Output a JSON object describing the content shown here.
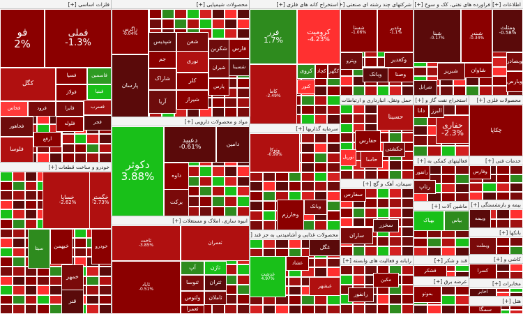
{
  "title": "",
  "colors": {
    "strong_negative": "#8b0000",
    "negative": "#b01010",
    "mild_negative": "#d42020",
    "light_negative": "#ff3030",
    "neutral_dark": "#5a0a0a",
    "positive": "#2e8b1e",
    "strong_positive": "#19c019",
    "light_positive": "#33dd33"
  },
  "chart_data": {
    "type": "treemap",
    "value_label": "daily change %",
    "sectors": [
      {
        "name": "فلزات اساسی [+]",
        "tiles": [
          {
            "name": "فو",
            "pct": "2%",
            "color": "#8b0000"
          },
          {
            "name": "فملی",
            "pct": "-1.3%",
            "color": "#8b0000"
          },
          {
            "name": "فاسمین",
            "pct": "",
            "color": "#2e9b22"
          },
          {
            "name": "فبنیا",
            "pct": "",
            "color": "#19c019"
          },
          {
            "name": "فسپا",
            "pct": "",
            "color": "#8b0000"
          },
          {
            "name": "کگل",
            "pct": "",
            "color": "#b01010"
          },
          {
            "name": "فولاژ",
            "pct": "",
            "color": "#8b0000"
          },
          {
            "name": "فایرا",
            "pct": "",
            "color": "#7a0a0a"
          },
          {
            "name": "فسرب",
            "pct": "",
            "color": "#a01010"
          },
          {
            "name": "فجر",
            "pct": "",
            "color": "#5a0a0a"
          },
          {
            "name": "فلوله",
            "pct": "",
            "color": "#8b0000"
          },
          {
            "name": "فخاس",
            "pct": "",
            "color": "#ff3a3a"
          },
          {
            "name": "فرود",
            "pct": "",
            "color": "#7a0a0a"
          },
          {
            "name": "فخاهور",
            "pct": "",
            "color": "#6e0c0c"
          },
          {
            "name": "ارفع",
            "pct": "",
            "color": "#8b0000"
          },
          {
            "name": "فلوسا",
            "pct": "",
            "color": "#b01010"
          }
        ]
      },
      {
        "name": "محصولات شیمیایی [+]",
        "tiles": [
          {
            "name": "زاگرس",
            "pct": "-0.04%",
            "color": "#8b0000"
          },
          {
            "name": "شپدیس",
            "pct": "",
            "color": "#5a0a0a"
          },
          {
            "name": "شفن",
            "pct": "",
            "color": "#7a0a0a"
          },
          {
            "name": "شکربن",
            "pct": "",
            "color": "#6e0c0c"
          },
          {
            "name": "فارس",
            "pct": "",
            "color": "#8b0000"
          },
          {
            "name": "شسینا",
            "pct": "",
            "color": "#5a0a0a"
          },
          {
            "name": "نوری",
            "pct": "",
            "color": "#b01010"
          },
          {
            "name": "جم",
            "pct": "",
            "color": "#8b0000"
          },
          {
            "name": "شاراک",
            "pct": "",
            "color": "#7a0a0a"
          },
          {
            "name": "کلر",
            "pct": "",
            "color": "#8b0000"
          },
          {
            "name": "آریا",
            "pct": "",
            "color": "#6e0c0c"
          },
          {
            "name": "شیراز",
            "pct": "",
            "color": "#8b0000"
          },
          {
            "name": "پارسان",
            "pct": "",
            "color": "#5a0a0a"
          },
          {
            "name": "شیران",
            "pct": "",
            "color": "#7a0a0a"
          },
          {
            "name": "پارس",
            "pct": "",
            "color": "#8b0000"
          }
        ]
      },
      {
        "name": "استخراج کانه های فلزی [+]",
        "tiles": [
          {
            "name": "فرر",
            "pct": "1.7%",
            "color": "#2e8b1e"
          },
          {
            "name": "کرومیت",
            "pct": "-4.23%",
            "color": "#ff3030"
          },
          {
            "name": "کروی",
            "pct": "",
            "color": "#2e8b1e"
          },
          {
            "name": "کاما",
            "pct": "-2.49%",
            "color": "#b01010"
          },
          {
            "name": "کچاد",
            "pct": "",
            "color": "#8b0000"
          },
          {
            "name": "کگهر",
            "pct": "",
            "color": "#7a0a0a"
          },
          {
            "name": "کنور",
            "pct": "",
            "color": "#ff3030"
          }
        ]
      },
      {
        "name": "خودرو و ساخت قطعات [+]",
        "tiles": [
          {
            "name": "خساپا",
            "pct": "-2.62%",
            "color": "#b01010"
          },
          {
            "name": "خگستر",
            "pct": "-2.73%",
            "color": "#b01010"
          },
          {
            "name": "خودرو",
            "pct": "",
            "color": "#8b0000"
          },
          {
            "name": "خمهر",
            "pct": "",
            "color": "#7a0a0a"
          },
          {
            "name": "خبهمن",
            "pct": "",
            "color": "#8b0000"
          },
          {
            "name": "قنر",
            "pct": "",
            "color": "#5a0a0a"
          },
          {
            "name": "سیتا",
            "pct": "",
            "color": "#2e8b1e"
          }
        ]
      },
      {
        "name": "مواد و محصولات دارویی [+]",
        "tiles": [
          {
            "name": "دکوثر",
            "pct": "3.88%",
            "color": "#19c019"
          },
          {
            "name": "دعبید",
            "pct": "-0.61%",
            "color": "#5a0a0a"
          },
          {
            "name": "دامین",
            "pct": "",
            "color": "#5a0a0a"
          },
          {
            "name": "داوه",
            "pct": "",
            "color": "#8b0000"
          },
          {
            "name": "برکت",
            "pct": "",
            "color": "#7a0a0a"
          }
        ]
      },
      {
        "name": "انبوه سازی، املاک و مستغلات [+]",
        "tiles": [
          {
            "name": "ثاخت",
            "pct": "-3.85%",
            "color": "#b01010"
          },
          {
            "name": "ثعمران",
            "pct": "",
            "color": "#b01010"
          },
          {
            "name": "ثاباد",
            "pct": "-0.51%",
            "color": "#8b0000"
          },
          {
            "name": "آپ",
            "pct": "",
            "color": "#2e8b1e"
          },
          {
            "name": "ثاژن",
            "pct": "",
            "color": "#19c019"
          },
          {
            "name": "ثنوسا",
            "pct": "",
            "color": "#7a0a0a"
          },
          {
            "name": "ثتران",
            "pct": "",
            "color": "#5a0a0a"
          },
          {
            "name": "ولتوس",
            "pct": "",
            "color": "#8b0000"
          },
          {
            "name": "ثعمرا",
            "pct": "",
            "color": "#8b0000"
          },
          {
            "name": "ثاملان",
            "pct": "",
            "color": "#7a0a0a"
          }
        ]
      },
      {
        "name": "سرمایه گذاریها [+]",
        "tiles": [
          {
            "name": "وتوکا",
            "pct": "-0.99%",
            "color": "#b01010"
          },
          {
            "name": "وخارزم",
            "pct": "",
            "color": "#8b0000"
          },
          {
            "name": "وبانک",
            "pct": "",
            "color": "#7a0a0a"
          }
        ]
      },
      {
        "name": "محصولات غذایی و آشامیدنی به جز قند [+]",
        "tiles": [
          {
            "name": "غگل",
            "pct": "",
            "color": "#5a0a0a"
          },
          {
            "name": "غدشت",
            "pct": "4.97%",
            "color": "#19c019"
          },
          {
            "name": "غشاد",
            "pct": "",
            "color": "#8b0000"
          },
          {
            "name": "غبشهر",
            "pct": "",
            "color": "#b01010"
          }
        ]
      },
      {
        "name": "شرکتهای چند رشته ای صنعتی [+]",
        "tiles": [
          {
            "name": "شستا",
            "pct": "-1.06%",
            "color": "#8b0000"
          },
          {
            "name": "وغدیر",
            "pct": "-1.1%",
            "color": "#8b0000"
          },
          {
            "name": "وکغدیر",
            "pct": "",
            "color": "#7a0a0a"
          },
          {
            "name": "وبانک",
            "pct": "",
            "color": "#5a0a0a"
          },
          {
            "name": "وصنا",
            "pct": "",
            "color": "#8b0000"
          },
          {
            "name": "وپترو",
            "pct": "",
            "color": "#6e0c0c"
          }
        ]
      },
      {
        "name": "فراورده های نفتی، کک و سوخ [+]",
        "tiles": [
          {
            "name": "شپنا",
            "pct": "-0.17%",
            "color": "#5a0a0a"
          },
          {
            "name": "شبندر",
            "pct": "-0.34%",
            "color": "#8b0000"
          },
          {
            "name": "شبریز",
            "pct": "",
            "color": "#7a0a0a"
          },
          {
            "name": "شاوان",
            "pct": "",
            "color": "#8b0000"
          },
          {
            "name": "شرانل",
            "pct": "",
            "color": "#5a0a0a"
          }
        ]
      },
      {
        "name": "اطلاعات [+]",
        "tiles": [
          {
            "name": "ومثلث",
            "pct": "-0.58%",
            "color": "#5a0a0a"
          },
          {
            "name": "وبصادر",
            "pct": "",
            "color": "#7a0a0a"
          },
          {
            "name": "وبارس",
            "pct": "",
            "color": "#8b0000"
          }
        ]
      },
      {
        "name": "حمل ونقل، انبارداری و ارتباطات [+]",
        "tiles": [
          {
            "name": "حسینا",
            "pct": "",
            "color": "#b01010"
          },
          {
            "name": "حفارس",
            "pct": "",
            "color": "#8b0000"
          },
          {
            "name": "تورپل",
            "pct": "",
            "color": "#ff3030"
          },
          {
            "name": "حاسا",
            "pct": "",
            "color": "#b01010"
          },
          {
            "name": "حکشتی",
            "pct": "",
            "color": "#7a0a0a"
          }
        ]
      },
      {
        "name": "سیمان، آهک و گچ [+]",
        "tiles": [
          {
            "name": "سفارس",
            "pct": "",
            "color": "#8b0000"
          },
          {
            "name": "ساران",
            "pct": "",
            "color": "#7a0a0a"
          },
          {
            "name": "سخزر",
            "pct": "",
            "color": "#5a0a0a"
          }
        ]
      },
      {
        "name": "استخراج نفت گاز و [+]",
        "tiles": [
          {
            "name": "حفاری",
            "pct": "-2.3%",
            "color": "#b01010"
          },
          {
            "name": "دانا",
            "pct": "",
            "color": "#8b0000"
          },
          {
            "name": "البرز",
            "pct": "",
            "color": "#7a0a0a"
          }
        ]
      },
      {
        "name": "فعالیتهای کمکی به [+]",
        "tiles": [
          {
            "name": "رانفور",
            "pct": "",
            "color": "#8b0000"
          },
          {
            "name": "رتاپ",
            "pct": "",
            "color": "#7a0a0a"
          }
        ]
      },
      {
        "name": "محصولات فلزی [+]",
        "tiles": [
          {
            "name": "چکاپا",
            "pct": "",
            "color": "#8b0000"
          }
        ]
      },
      {
        "name": "ماشین آلات [+]",
        "tiles": [
          {
            "name": "بهپاک",
            "pct": "",
            "color": "#19c019"
          },
          {
            "name": "بپاس",
            "pct": "",
            "color": "#2e8b1e"
          }
        ]
      },
      {
        "name": "رایانه و فعالیت های وابسته [+]",
        "tiles": [
          {
            "name": "مکین",
            "pct": "",
            "color": "#8b0000"
          },
          {
            "name": "رانفور",
            "pct": "",
            "color": "#7a0a0a"
          }
        ]
      },
      {
        "name": "خدمات فنی [+]",
        "tiles": [
          {
            "name": "وفارس",
            "pct": "",
            "color": "#8b0000"
          }
        ]
      },
      {
        "name": "بیمه و بازنشستگی [+]",
        "tiles": [
          {
            "name": "وبیمه",
            "pct": "",
            "color": "#5a0a0a"
          }
        ]
      },
      {
        "name": "قند و شکر [+]",
        "tiles": [
          {
            "name": "قشکر",
            "pct": "",
            "color": "#8b0000"
          }
        ]
      },
      {
        "name": "عرضه برق [+]",
        "tiles": [
          {
            "name": "بموتو",
            "pct": "",
            "color": "#8b0000"
          }
        ]
      },
      {
        "name": "بانکها [+]",
        "tiles": [
          {
            "name": "وبملت",
            "pct": "",
            "color": "#7a0a0a"
          }
        ]
      },
      {
        "name": "کاشی و [+]",
        "tiles": [
          {
            "name": "کسرا",
            "pct": "",
            "color": "#8b0000"
          }
        ]
      },
      {
        "name": "مخابرات [+]",
        "tiles": [
          {
            "name": "اخابر",
            "pct": "",
            "color": "#5a0a0a"
          }
        ]
      },
      {
        "name": "هتل [+]",
        "tiles": [
          {
            "name": "سمگا",
            "pct": "",
            "color": "#8b0000"
          }
        ]
      }
    ]
  }
}
